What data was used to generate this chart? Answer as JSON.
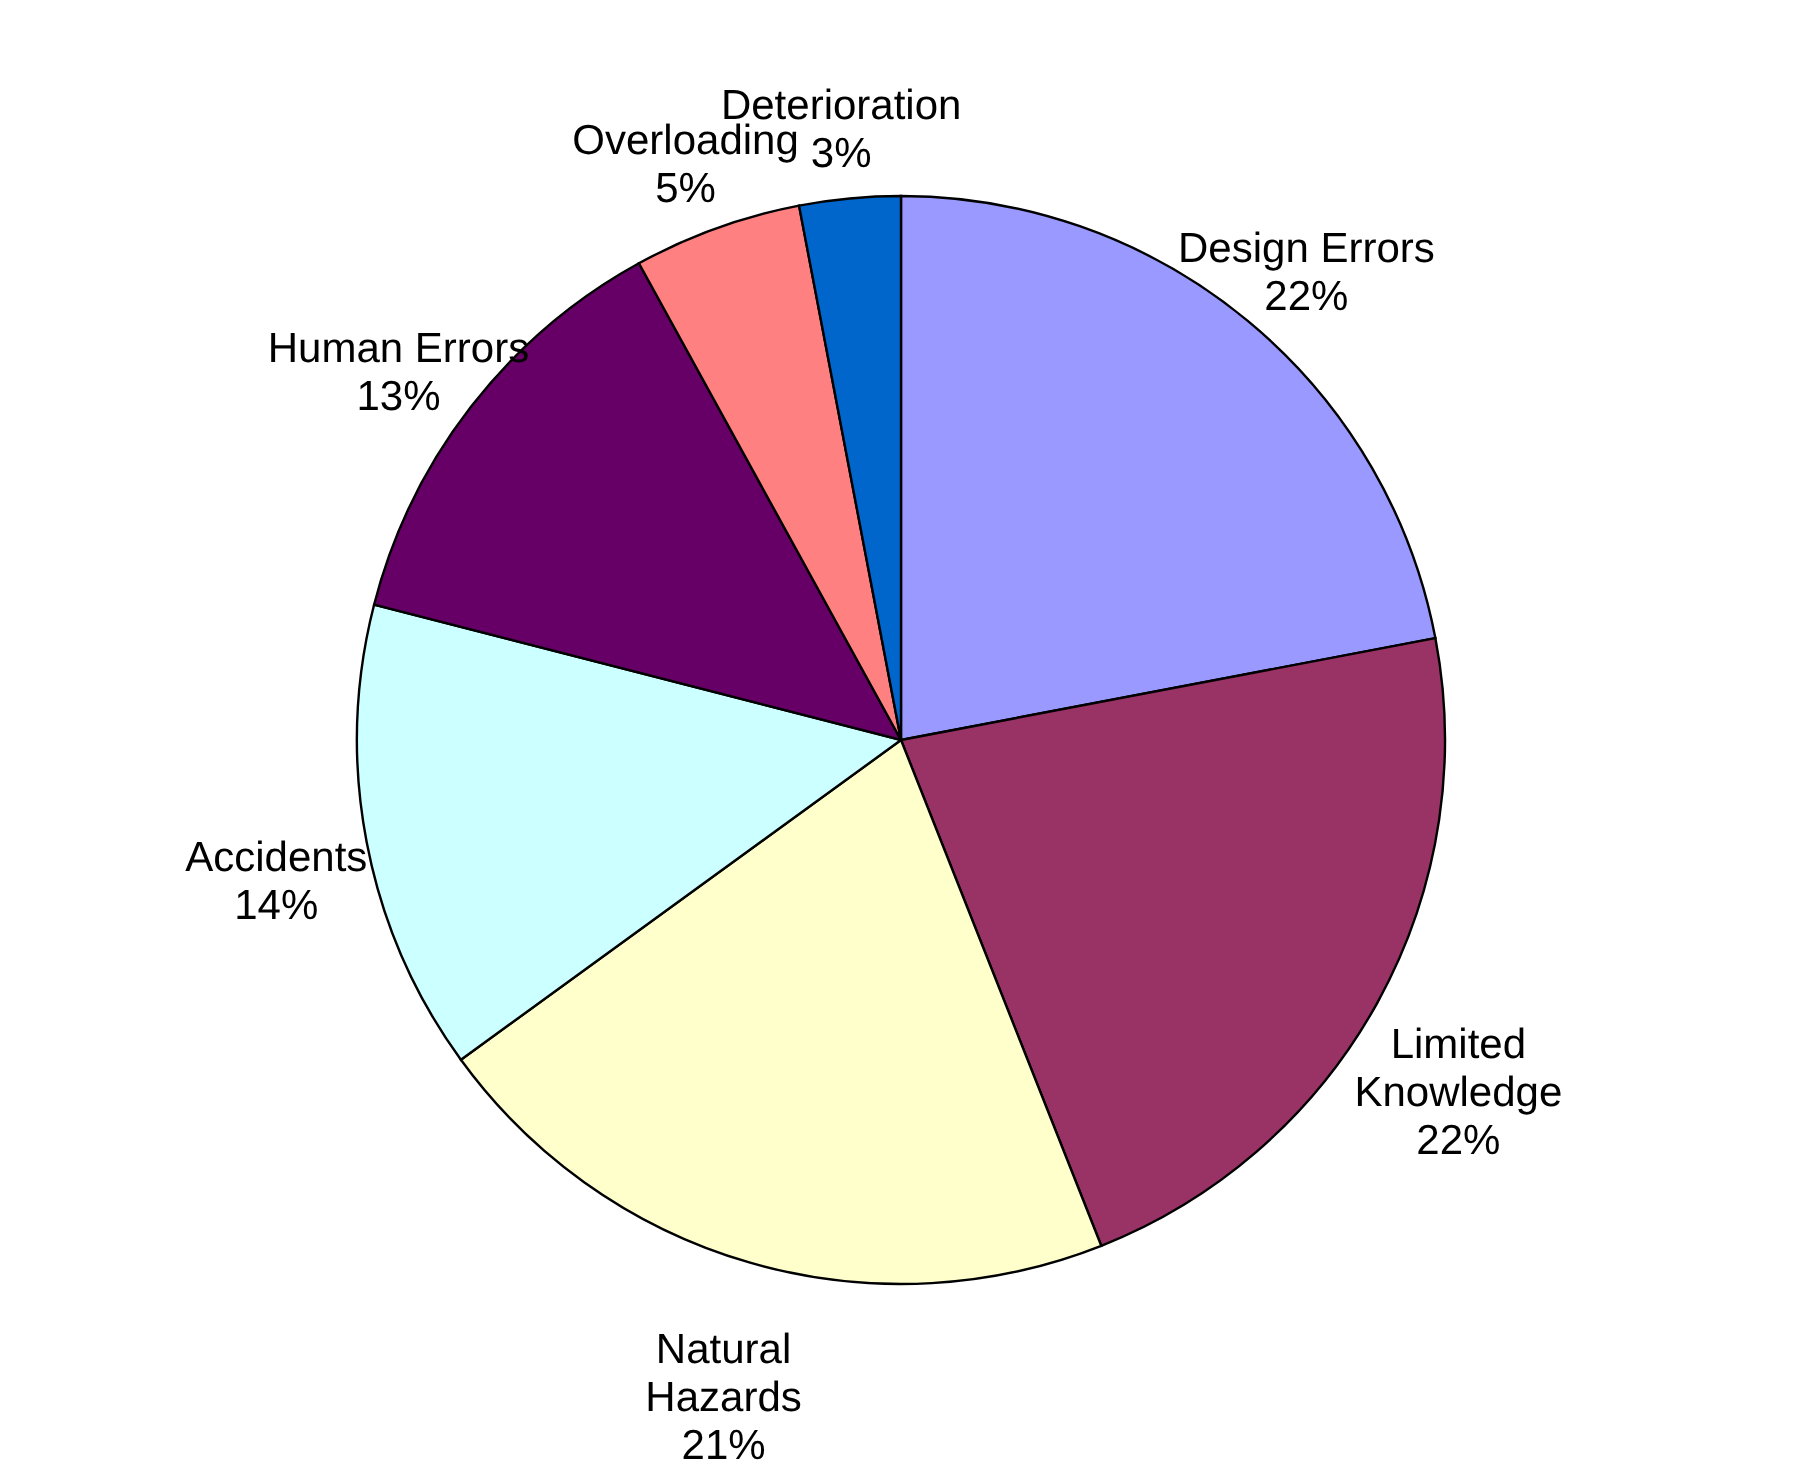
{
  "chart_data": {
    "type": "pie",
    "categories": [
      "Design Errors",
      "Limited Knowledge",
      "Natural Hazards",
      "Accidents",
      "Human Errors",
      "Overloading",
      "Deterioration"
    ],
    "values": [
      22,
      22,
      21,
      14,
      13,
      5,
      3
    ],
    "value_labels": [
      "22%",
      "22%",
      "21%",
      "14%",
      "13%",
      "5%",
      "3%"
    ],
    "colors": [
      "#9999ff",
      "#993366",
      "#ffffcc",
      "#ccffff",
      "#660066",
      "#ff8080",
      "#0066cc"
    ]
  }
}
